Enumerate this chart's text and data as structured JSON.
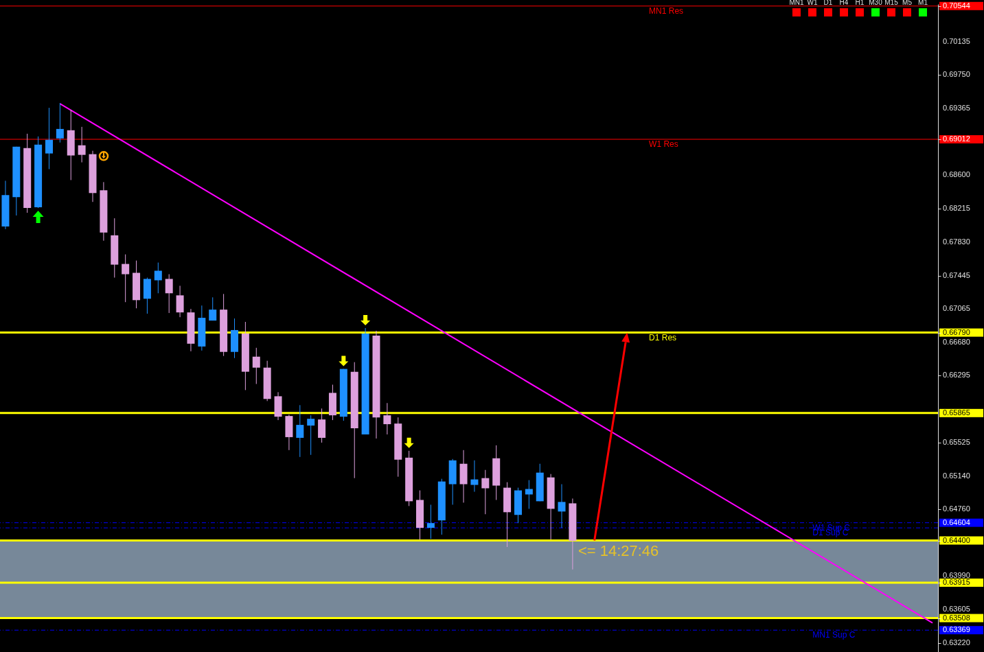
{
  "chart_data": {
    "type": "candlestick",
    "categories": [
      null,
      null,
      null,
      null,
      null,
      null,
      null,
      null,
      null,
      null,
      null,
      null,
      null,
      null,
      null,
      null,
      null,
      null,
      null,
      null,
      null,
      null,
      null,
      null,
      null,
      null,
      null,
      null,
      null,
      null,
      null,
      null,
      null,
      null,
      null,
      null,
      null,
      null,
      null,
      null,
      null,
      null,
      null,
      null,
      null,
      null,
      null,
      null,
      null,
      null,
      null,
      null,
      null,
      null,
      null,
      null,
      null,
      null,
      null,
      null,
      null,
      null,
      null,
      null,
      null,
      null,
      null,
      null,
      null,
      null,
      null,
      null,
      null,
      null,
      null,
      null,
      null,
      null,
      null,
      null,
      null,
      null,
      null,
      null,
      null,
      null
    ],
    "ohlc": [
      [
        0.6801,
        0.68535,
        0.67979,
        0.68371
      ],
      [
        0.68347,
        0.68927,
        0.68136,
        0.68927
      ],
      [
        0.68912,
        0.69076,
        0.68167,
        0.68222
      ],
      [
        0.6823,
        0.69045,
        0.68222,
        0.68951
      ],
      [
        0.68849,
        0.69374,
        0.68669,
        0.69006
      ],
      [
        0.69022,
        0.69429,
        0.68975,
        0.69131
      ],
      [
        0.69116,
        0.69351,
        0.68543,
        0.68826
      ],
      [
        0.68943,
        0.69155,
        0.68747,
        0.68833
      ],
      [
        0.68841,
        0.6888,
        0.68292,
        0.68394
      ],
      [
        0.68426,
        0.6852,
        0.67846,
        0.6794
      ],
      [
        0.67908,
        0.68104,
        0.67422,
        0.67571
      ],
      [
        0.67579,
        0.67689,
        0.6714,
        0.67461
      ],
      [
        0.67477,
        0.67618,
        0.67069,
        0.67163
      ],
      [
        0.67179,
        0.67422,
        0.67007,
        0.67407
      ],
      [
        0.67391,
        0.67595,
        0.67242,
        0.67501
      ],
      [
        0.67407,
        0.67461,
        0.67015,
        0.67242
      ],
      [
        0.67218,
        0.67328,
        0.66967,
        0.67022
      ],
      [
        0.67022,
        0.67062,
        0.66575,
        0.66662
      ],
      [
        0.6663,
        0.67101,
        0.66583,
        0.6696
      ],
      [
        0.66928,
        0.67195,
        0.66928,
        0.67054
      ],
      [
        0.67054,
        0.67234,
        0.66521,
        0.66568
      ],
      [
        0.66568,
        0.66952,
        0.66497,
        0.66819
      ],
      [
        0.66779,
        0.66913,
        0.66129,
        0.6634
      ],
      [
        0.66513,
        0.66615,
        0.66199,
        0.66387
      ],
      [
        0.66387,
        0.66466,
        0.66003,
        0.66027
      ],
      [
        0.66058,
        0.66105,
        0.65784,
        0.65823
      ],
      [
        0.65831,
        0.65846,
        0.65439,
        0.65588
      ],
      [
        0.6558,
        0.65956,
        0.6536,
        0.65729
      ],
      [
        0.65721,
        0.65839,
        0.65384,
        0.65799
      ],
      [
        0.65791,
        0.65917,
        0.65525,
        0.6558
      ],
      [
        0.66097,
        0.66191,
        0.65784,
        0.65839
      ],
      [
        0.65823,
        0.66372,
        0.65776,
        0.66372
      ],
      [
        0.6634,
        0.6645,
        0.65117,
        0.6569
      ],
      [
        0.65619,
        0.66842,
        0.65619,
        0.66779
      ],
      [
        0.66756,
        0.66811,
        0.65572,
        0.65815
      ],
      [
        0.65839,
        0.6598,
        0.65619,
        0.65737
      ],
      [
        0.65744,
        0.65815,
        0.65133,
        0.65329
      ],
      [
        0.65352,
        0.65431,
        0.64796,
        0.64851
      ],
      [
        0.64866,
        0.64976,
        0.64412,
        0.64545
      ],
      [
        0.64545,
        0.64811,
        0.64419,
        0.646
      ],
      [
        0.64631,
        0.65109,
        0.64467,
        0.65078
      ],
      [
        0.65047,
        0.65337,
        0.64811,
        0.65321
      ],
      [
        0.65282,
        0.65439,
        0.64835,
        0.65047
      ],
      [
        0.65039,
        0.65321,
        0.6496,
        0.65102
      ],
      [
        0.65117,
        0.65211,
        0.64702,
        0.65
      ],
      [
        0.65345,
        0.65494,
        0.64866,
        0.65031
      ],
      [
        0.65007,
        0.6507,
        0.64325,
        0.64725
      ],
      [
        0.64694,
        0.65007,
        0.646,
        0.64976
      ],
      [
        0.64929,
        0.65094,
        0.64764,
        0.64992
      ],
      [
        0.64851,
        0.65282,
        0.64851,
        0.6518
      ],
      [
        0.65125,
        0.65164,
        0.64412,
        0.64764
      ],
      [
        0.64733,
        0.65047,
        0.64545,
        0.64843
      ],
      [
        0.64827,
        0.64882,
        0.64067,
        0.64396
      ],
      null,
      null,
      null,
      null,
      null,
      null,
      null,
      null,
      null,
      null,
      null,
      null,
      null,
      null,
      null,
      null,
      null,
      null,
      null,
      null,
      null,
      null,
      null,
      null,
      null,
      null,
      null,
      null,
      null,
      null,
      null,
      null,
      null
    ],
    "colors": [
      "#1e90ff",
      "#1e90ff",
      "#dda0dd",
      "#1e90ff",
      "#1e90ff",
      "#1e90ff",
      "#dda0dd",
      "#dda0dd",
      "#dda0dd",
      "#dda0dd",
      "#dda0dd",
      "#dda0dd",
      "#dda0dd",
      "#1e90ff",
      "#1e90ff",
      "#dda0dd",
      "#dda0dd",
      "#dda0dd",
      "#1e90ff",
      "#1e90ff",
      "#dda0dd",
      "#1e90ff",
      "#dda0dd",
      "#dda0dd",
      "#dda0dd",
      "#dda0dd",
      "#dda0dd",
      "#1e90ff",
      "#1e90ff",
      "#dda0dd",
      "#dda0dd",
      "#1e90ff",
      "#dda0dd",
      "#1e90ff",
      "#dda0dd",
      "#dda0dd",
      "#dda0dd",
      "#dda0dd",
      "#dda0dd",
      "#1e90ff",
      "#1e90ff",
      "#1e90ff",
      "#dda0dd",
      "#1e90ff",
      "#dda0dd",
      "#dda0dd",
      "#dda0dd",
      "#1e90ff",
      "#1e90ff",
      "#1e90ff",
      "#dda0dd",
      "#1e90ff",
      "#dda0dd",
      null,
      null,
      null,
      null,
      null,
      null,
      null,
      null,
      null,
      null,
      null,
      null,
      null,
      null,
      null,
      null,
      null,
      null,
      null,
      null,
      null,
      null,
      null,
      null,
      null,
      null,
      null,
      null,
      null,
      null,
      null,
      null,
      null
    ],
    "series": [
      {
        "type": "line",
        "color": "#ff00ff",
        "values": [
          null,
          null,
          null,
          null,
          null,
          0.69421,
          null,
          null,
          null,
          null,
          null,
          null,
          null,
          null,
          null,
          null,
          null,
          null,
          null,
          null,
          null,
          null,
          null,
          null,
          null,
          null,
          null,
          null,
          null,
          null,
          null,
          null,
          null,
          null,
          null,
          null,
          null,
          null,
          null,
          null,
          null,
          null,
          null,
          null,
          null,
          null,
          null,
          null,
          null,
          null,
          null,
          null,
          null,
          null,
          null,
          null,
          null,
          null,
          null,
          null,
          null,
          null,
          null,
          null,
          null,
          null,
          null,
          null,
          null,
          null,
          null,
          null,
          null,
          null,
          null,
          null,
          null,
          null,
          null,
          null,
          null,
          null,
          null,
          null,
          null,
          0.63453
        ]
      }
    ],
    "ylim": [
      0.63118,
      0.70566
    ],
    "yticks": [
      {
        "value": 0.70544,
        "label": "0.70544"
      },
      0.70135,
      {
        "value": 0.6975,
        "label": "0.69750"
      },
      0.69365,
      0.69012,
      {
        "value": 0.686,
        "label": "0.68600"
      },
      0.68215,
      {
        "value": 0.6783,
        "label": "0.67830"
      },
      0.67445,
      0.67065,
      {
        "value": 0.6679,
        "label": "0.66790"
      },
      {
        "value": 0.6668,
        "label": "0.66680"
      },
      0.66295,
      0.65865,
      0.65525,
      {
        "value": 0.6514,
        "label": "0.65140"
      },
      {
        "value": 0.6476,
        "label": "0.64760"
      },
      0.64604,
      {
        "value": 0.644,
        "label": "0.64400"
      },
      {
        "value": 0.6399,
        "label": "0.63990"
      },
      0.63915,
      {
        "value": 0.63605,
        "label": "0.63605"
      },
      0.63508,
      0.63369,
      {
        "value": 0.6322,
        "label": "0.63220"
      }
    ],
    "ref_lines": [
      {
        "axis": "y",
        "value": 0.70544,
        "label": "MN1 Res",
        "color": "#ff0000"
      },
      {
        "axis": "y",
        "value": 0.69012,
        "label": "W1 Res",
        "color": "#ff0000"
      },
      {
        "axis": "y",
        "value": 0.6679,
        "label": "D1 Res",
        "color": "#ffff00"
      },
      {
        "axis": "y",
        "value": 0.65865,
        "color": "#ffff00"
      },
      {
        "axis": "y",
        "value": 0.64604,
        "label": "W1 Sup C",
        "color": "#0000ff",
        "line_style": "dashed"
      },
      {
        "axis": "y",
        "value": 0.64545,
        "label": "D1 Sup C",
        "color": "#0000ff",
        "line_style": "dashed"
      },
      {
        "axis": "y",
        "value": 0.644,
        "color": "#ffff00"
      },
      {
        "axis": "y",
        "value": 0.63915,
        "color": "#ffff00"
      },
      {
        "axis": "y",
        "value": 0.63508,
        "color": "#ffff00"
      },
      {
        "axis": "y",
        "value": 0.63369,
        "label": "MN1 Sup C",
        "color": "#0000ff",
        "line_style": "dashed"
      }
    ],
    "bands": [
      {
        "axis": "y",
        "from": 0.63508,
        "to": 0.644,
        "color": "#778899"
      }
    ],
    "annotations": [
      "MN1",
      "W1",
      "D1",
      "H4",
      "H1",
      "M30",
      "M15",
      "M5",
      "M1",
      "<= 14:27:46"
    ],
    "grid": false
  }
}
